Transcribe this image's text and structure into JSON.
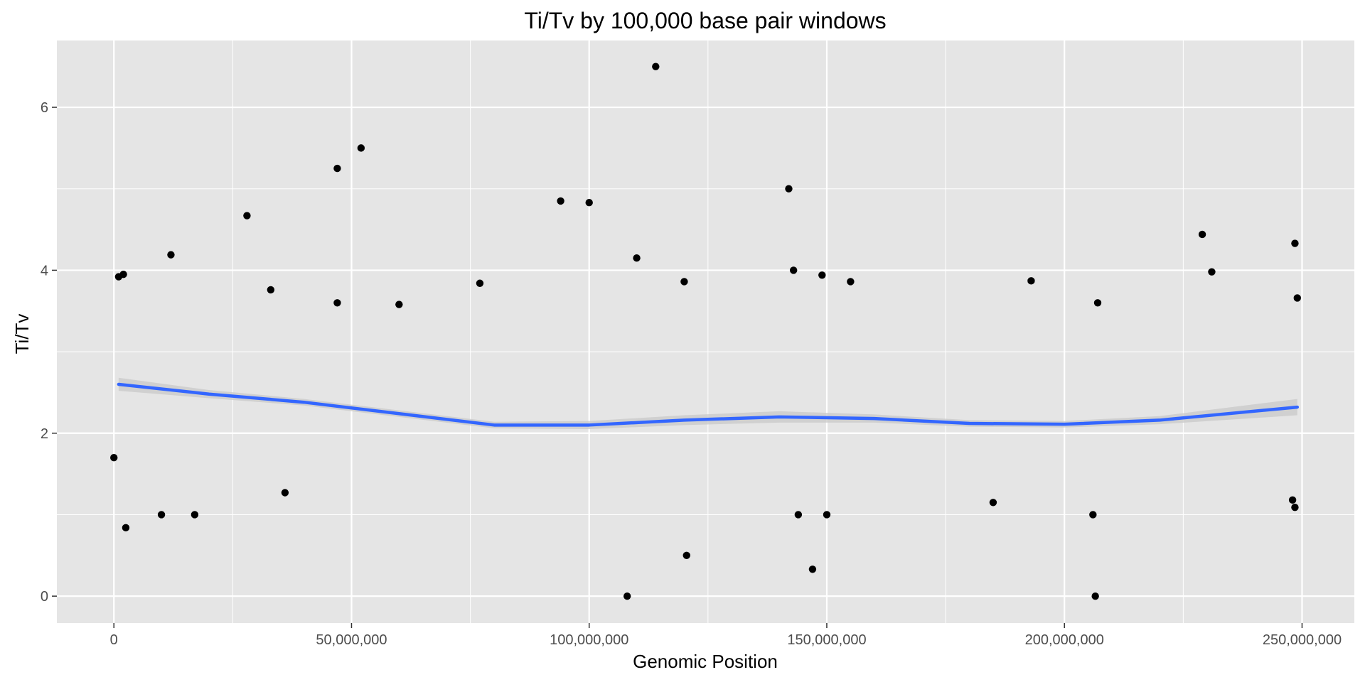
{
  "chart_data": {
    "type": "scatter",
    "title": "Ti/Tv by 100,000 base pair windows",
    "xlabel": "Genomic Position",
    "ylabel": "Ti/Tv",
    "xlim": [
      -12000000,
      261000000
    ],
    "ylim": [
      -0.33,
      6.82
    ],
    "x_ticks": [
      {
        "value": 0,
        "label": "0"
      },
      {
        "value": 50000000,
        "label": "50,000,000"
      },
      {
        "value": 100000000,
        "label": "100,000,000"
      },
      {
        "value": 150000000,
        "label": "150,000,000"
      },
      {
        "value": 200000000,
        "label": "200,000,000"
      },
      {
        "value": 250000000,
        "label": "250,000,000"
      }
    ],
    "y_ticks": [
      {
        "value": 0,
        "label": "0"
      },
      {
        "value": 2,
        "label": "2"
      },
      {
        "value": 4,
        "label": "4"
      },
      {
        "value": 6,
        "label": "6"
      }
    ],
    "grid": true,
    "colors": {
      "panel_background": "#e5e5e5",
      "gridline": "#ffffff",
      "points": "#000000",
      "smooth_line": "#3366ff",
      "confidence_band": "#c8c8c8"
    },
    "series": [
      {
        "type": "scatter",
        "points": [
          [
            1000000,
            3.92
          ],
          [
            2000000,
            3.95
          ],
          [
            2500000,
            0.84
          ],
          [
            12000000,
            4.19
          ],
          [
            10000000,
            1.0
          ],
          [
            17000000,
            1.0
          ],
          [
            28000000,
            4.67
          ],
          [
            33000000,
            3.76
          ],
          [
            36000000,
            1.27
          ],
          [
            47000000,
            5.25
          ],
          [
            52000000,
            5.5
          ],
          [
            47000000,
            3.6
          ],
          [
            60000000,
            3.58
          ],
          [
            77000000,
            3.84
          ],
          [
            94000000,
            4.85
          ],
          [
            100000000,
            4.83
          ],
          [
            110000000,
            4.15
          ],
          [
            114000000,
            6.5
          ],
          [
            108000000,
            0.0
          ],
          [
            120000000,
            3.86
          ],
          [
            120500000,
            0.5
          ],
          [
            142000000,
            5.0
          ],
          [
            143000000,
            4.0
          ],
          [
            147000000,
            0.33
          ],
          [
            149000000,
            3.94
          ],
          [
            144000000,
            1.0
          ],
          [
            150000000,
            1.0
          ],
          [
            155000000,
            3.86
          ],
          [
            193000000,
            3.87
          ],
          [
            206000000,
            1.0
          ],
          [
            206500000,
            0.0
          ],
          [
            207000000,
            3.6
          ],
          [
            229000000,
            4.44
          ],
          [
            231000000,
            3.98
          ],
          [
            248500000,
            4.33
          ],
          [
            248000000,
            1.18
          ],
          [
            248500000,
            1.09
          ],
          [
            249000000,
            3.66
          ],
          [
            0,
            1.7
          ],
          [
            185000000,
            1.15
          ]
        ]
      },
      {
        "type": "line",
        "name": "loess",
        "x": [
          1000000,
          20000000,
          40000000,
          60000000,
          80000000,
          100000000,
          120000000,
          140000000,
          160000000,
          180000000,
          200000000,
          220000000,
          249000000
        ],
        "y": [
          2.6,
          2.48,
          2.38,
          2.24,
          2.1,
          2.1,
          2.16,
          2.2,
          2.18,
          2.12,
          2.11,
          2.16,
          2.32
        ],
        "band": [
          0.08,
          0.05,
          0.04,
          0.04,
          0.04,
          0.05,
          0.06,
          0.07,
          0.05,
          0.04,
          0.04,
          0.05,
          0.1
        ]
      }
    ]
  }
}
